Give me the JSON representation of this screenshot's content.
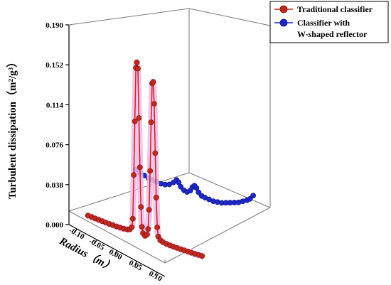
{
  "chart_data": {
    "type": "line",
    "projection": "3d",
    "ylabel": "Turbulent dissipation（m²/g³）",
    "xlabel": "Radius（m）",
    "yticks": [
      "0.000",
      "0.038",
      "0.076",
      "0.114",
      "0.152",
      "0.190"
    ],
    "xticks": [
      "-0.10",
      "-0.05",
      "0.00",
      "0.05",
      "0.10"
    ],
    "ylim": [
      0,
      0.19
    ],
    "xlim": [
      -0.12,
      0.12
    ],
    "legend": {
      "placement": "top-right",
      "entries": [
        {
          "label": "Traditional classifier"
        },
        {
          "label": "Classifier with",
          "label2": "W-shaped reflector"
        }
      ]
    },
    "series": [
      {
        "name": "Traditional classifier",
        "color": "#c0281e",
        "points": [
          [
            -0.112,
            0.002
          ],
          [
            -0.105,
            0.0018
          ],
          [
            -0.098,
            0.0016
          ],
          [
            -0.091,
            0.0015
          ],
          [
            -0.084,
            0.0014
          ],
          [
            -0.077,
            0.0013
          ],
          [
            -0.07,
            0.0012
          ],
          [
            -0.063,
            0.0012
          ],
          [
            -0.056,
            0.0012
          ],
          [
            -0.049,
            0.0013
          ],
          [
            -0.042,
            0.0015
          ],
          [
            -0.035,
            0.002
          ],
          [
            -0.03,
            0.003
          ],
          [
            -0.026,
            0.006
          ],
          [
            -0.024,
            0.015
          ],
          [
            -0.022,
            0.06
          ],
          [
            -0.02,
            0.115
          ],
          [
            -0.018,
            0.17
          ],
          [
            -0.016,
            0.176
          ],
          [
            -0.014,
            0.17
          ],
          [
            -0.012,
            0.12
          ],
          [
            -0.01,
            0.07
          ],
          [
            -0.008,
            0.03
          ],
          [
            -0.006,
            0.01
          ],
          [
            -0.004,
            0.004
          ],
          [
            0.0,
            0.002
          ],
          [
            0.004,
            0.004
          ],
          [
            0.006,
            0.01
          ],
          [
            0.008,
            0.03
          ],
          [
            0.01,
            0.07
          ],
          [
            0.012,
            0.12
          ],
          [
            0.014,
            0.16
          ],
          [
            0.016,
            0.162
          ],
          [
            0.018,
            0.14
          ],
          [
            0.02,
            0.09
          ],
          [
            0.022,
            0.045
          ],
          [
            0.024,
            0.015
          ],
          [
            0.026,
            0.006
          ],
          [
            0.03,
            0.003
          ],
          [
            0.035,
            0.002
          ],
          [
            0.042,
            0.0015
          ],
          [
            0.049,
            0.0013
          ],
          [
            0.056,
            0.0012
          ],
          [
            0.063,
            0.0012
          ],
          [
            0.07,
            0.0012
          ],
          [
            0.077,
            0.0013
          ],
          [
            0.084,
            0.0014
          ],
          [
            0.091,
            0.0015
          ],
          [
            0.098,
            0.0016
          ],
          [
            0.105,
            0.0018
          ],
          [
            0.112,
            0.002
          ]
        ]
      },
      {
        "name": "Classifier with W-shaped reflector",
        "color": "#1e28c8",
        "points": [
          [
            -0.112,
            0.022
          ],
          [
            -0.104,
            0.02
          ],
          [
            -0.096,
            0.018
          ],
          [
            -0.088,
            0.016
          ],
          [
            -0.08,
            0.015
          ],
          [
            -0.072,
            0.014
          ],
          [
            -0.064,
            0.013
          ],
          [
            -0.056,
            0.013
          ],
          [
            -0.048,
            0.014
          ],
          [
            -0.04,
            0.017
          ],
          [
            -0.034,
            0.02
          ],
          [
            -0.03,
            0.018
          ],
          [
            -0.026,
            0.014
          ],
          [
            -0.02,
            0.011
          ],
          [
            -0.014,
            0.01
          ],
          [
            -0.008,
            0.012
          ],
          [
            -0.004,
            0.016
          ],
          [
            0.0,
            0.018
          ],
          [
            0.004,
            0.016
          ],
          [
            0.008,
            0.012
          ],
          [
            0.014,
            0.009
          ],
          [
            0.02,
            0.008
          ],
          [
            0.028,
            0.007
          ],
          [
            0.036,
            0.006
          ],
          [
            0.044,
            0.006
          ],
          [
            0.052,
            0.006
          ],
          [
            0.06,
            0.007
          ],
          [
            0.068,
            0.008
          ],
          [
            0.076,
            0.009
          ],
          [
            0.084,
            0.01
          ],
          [
            0.092,
            0.012
          ],
          [
            0.1,
            0.014
          ],
          [
            0.106,
            0.016
          ],
          [
            0.112,
            0.02
          ]
        ]
      }
    ]
  }
}
